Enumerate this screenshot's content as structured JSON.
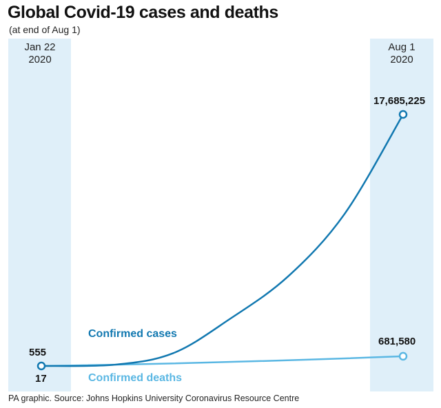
{
  "header": {
    "title": "Global Covid-19 cases and deaths",
    "subtitle": "(at end of Aug 1)"
  },
  "dates": {
    "start_line1": "Jan 22",
    "start_line2": "2020",
    "end_line1": "Aug 1",
    "end_line2": "2020"
  },
  "footer": {
    "source": "PA graphic. Source: Johns Hopkins University Coronavirus Resource Centre"
  },
  "colors": {
    "cases": "#1178b0",
    "deaths": "#5ab7e3",
    "band": "#dfeff9"
  },
  "chart_data": {
    "type": "line",
    "title": "Global Covid-19 cases and deaths",
    "subtitle": "(at end of Aug 1)",
    "x_range": [
      "2020-01-22",
      "2020-08-01"
    ],
    "y_range": [
      0,
      17685225
    ],
    "grid": false,
    "series": [
      {
        "name": "Confirmed cases",
        "x": [
          "2020-01-22",
          "2020-03-01",
          "2020-04-01",
          "2020-05-01",
          "2020-06-01",
          "2020-07-01",
          "2020-08-01"
        ],
        "values": [
          555,
          88000,
          900000,
          3300000,
          6300000,
          10700000,
          17685225
        ],
        "start_label": "555",
        "end_label": "17,685,225"
      },
      {
        "name": "Confirmed deaths",
        "x": [
          "2020-01-22",
          "2020-08-01"
        ],
        "values": [
          17,
          681580
        ],
        "start_label": "17",
        "end_label": "681,580"
      }
    ]
  }
}
